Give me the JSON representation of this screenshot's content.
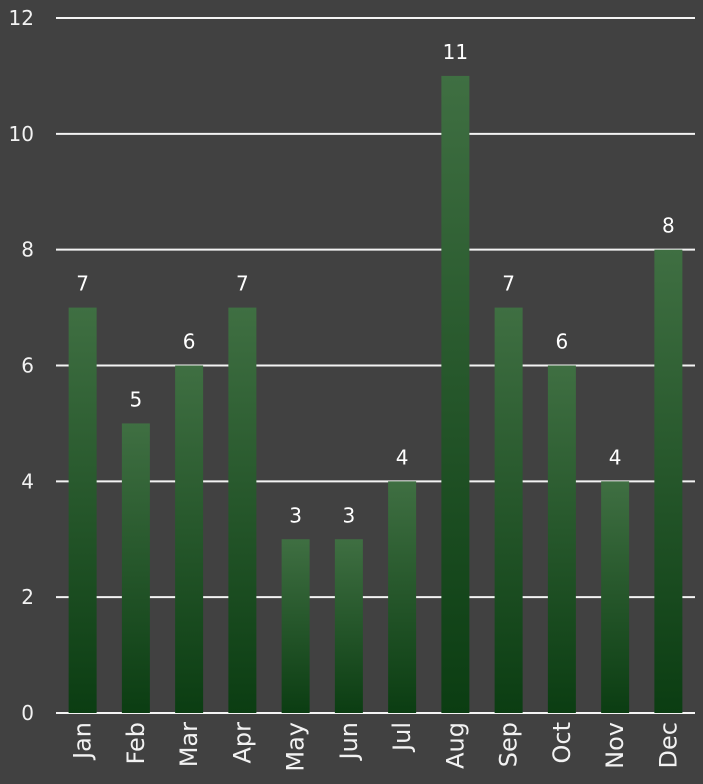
{
  "chart_data": {
    "type": "bar",
    "categories": [
      "Jan",
      "Feb",
      "Mar",
      "Apr",
      "May",
      "Jun",
      "Jul",
      "Aug",
      "Sep",
      "Oct",
      "Nov",
      "Dec"
    ],
    "values": [
      7,
      5,
      6,
      7,
      3,
      3,
      4,
      11,
      7,
      6,
      4,
      8
    ],
    "title": "",
    "xlabel": "",
    "ylabel": "",
    "ylim": [
      0,
      12
    ],
    "yticks": [
      0,
      2,
      4,
      6,
      8,
      10,
      12
    ],
    "grid": true,
    "data_labels": true,
    "colors": {
      "background": "#414141",
      "bar_top": "#3f6f42",
      "bar_bottom": "#0b3d12",
      "grid": "#f3f3f3",
      "text": "#f2f2f2"
    }
  }
}
